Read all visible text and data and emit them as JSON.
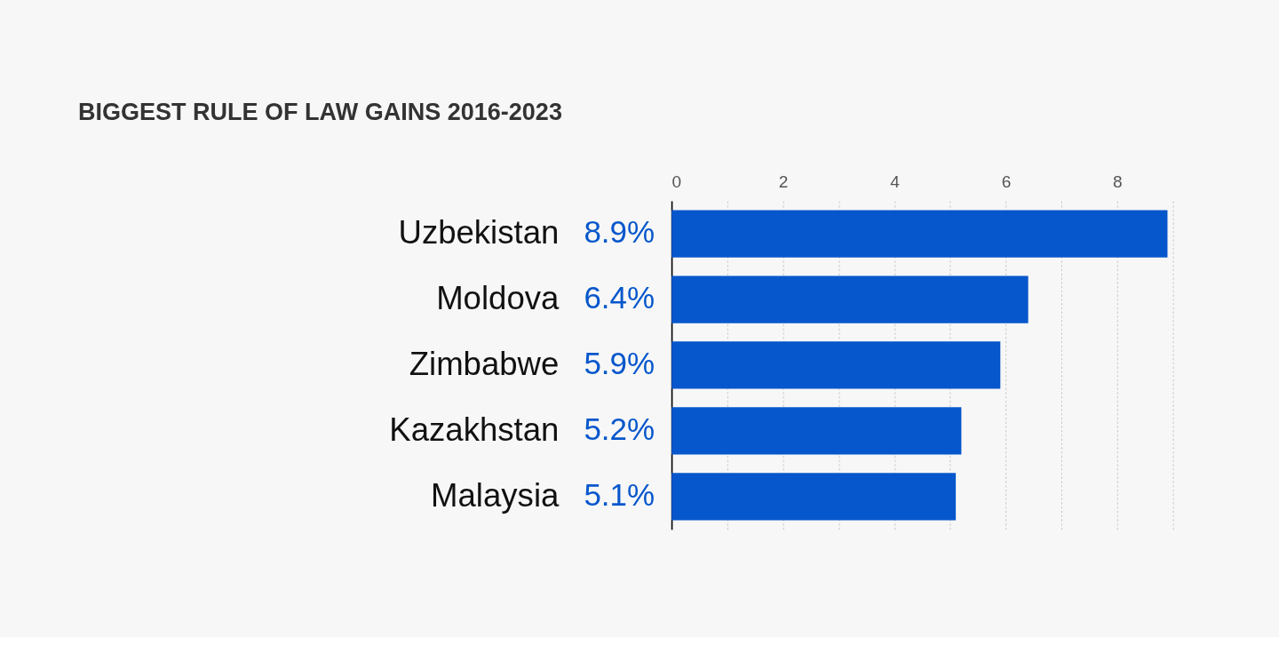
{
  "chart_data": {
    "type": "bar",
    "orientation": "horizontal",
    "title": "BIGGEST RULE OF LAW GAINS 2016-2023",
    "categories": [
      "Uzbekistan",
      "Moldova",
      "Zimbabwe",
      "Kazakhstan",
      "Malaysia"
    ],
    "values": [
      8.9,
      6.4,
      5.9,
      5.2,
      5.1
    ],
    "value_labels": [
      "8.9%",
      "6.4%",
      "5.9%",
      "5.2%",
      "5.1%"
    ],
    "color": "#0757cc",
    "xlim": [
      0,
      9
    ],
    "xticks": [
      0,
      {
        "value": 1,
        "label": null
      },
      2,
      {
        "value": 3,
        "label": null
      },
      4,
      {
        "value": 5,
        "label": null
      },
      6,
      {
        "value": 7,
        "label": null
      },
      8,
      {
        "value": 9,
        "label": null
      }
    ],
    "grid": true
  }
}
